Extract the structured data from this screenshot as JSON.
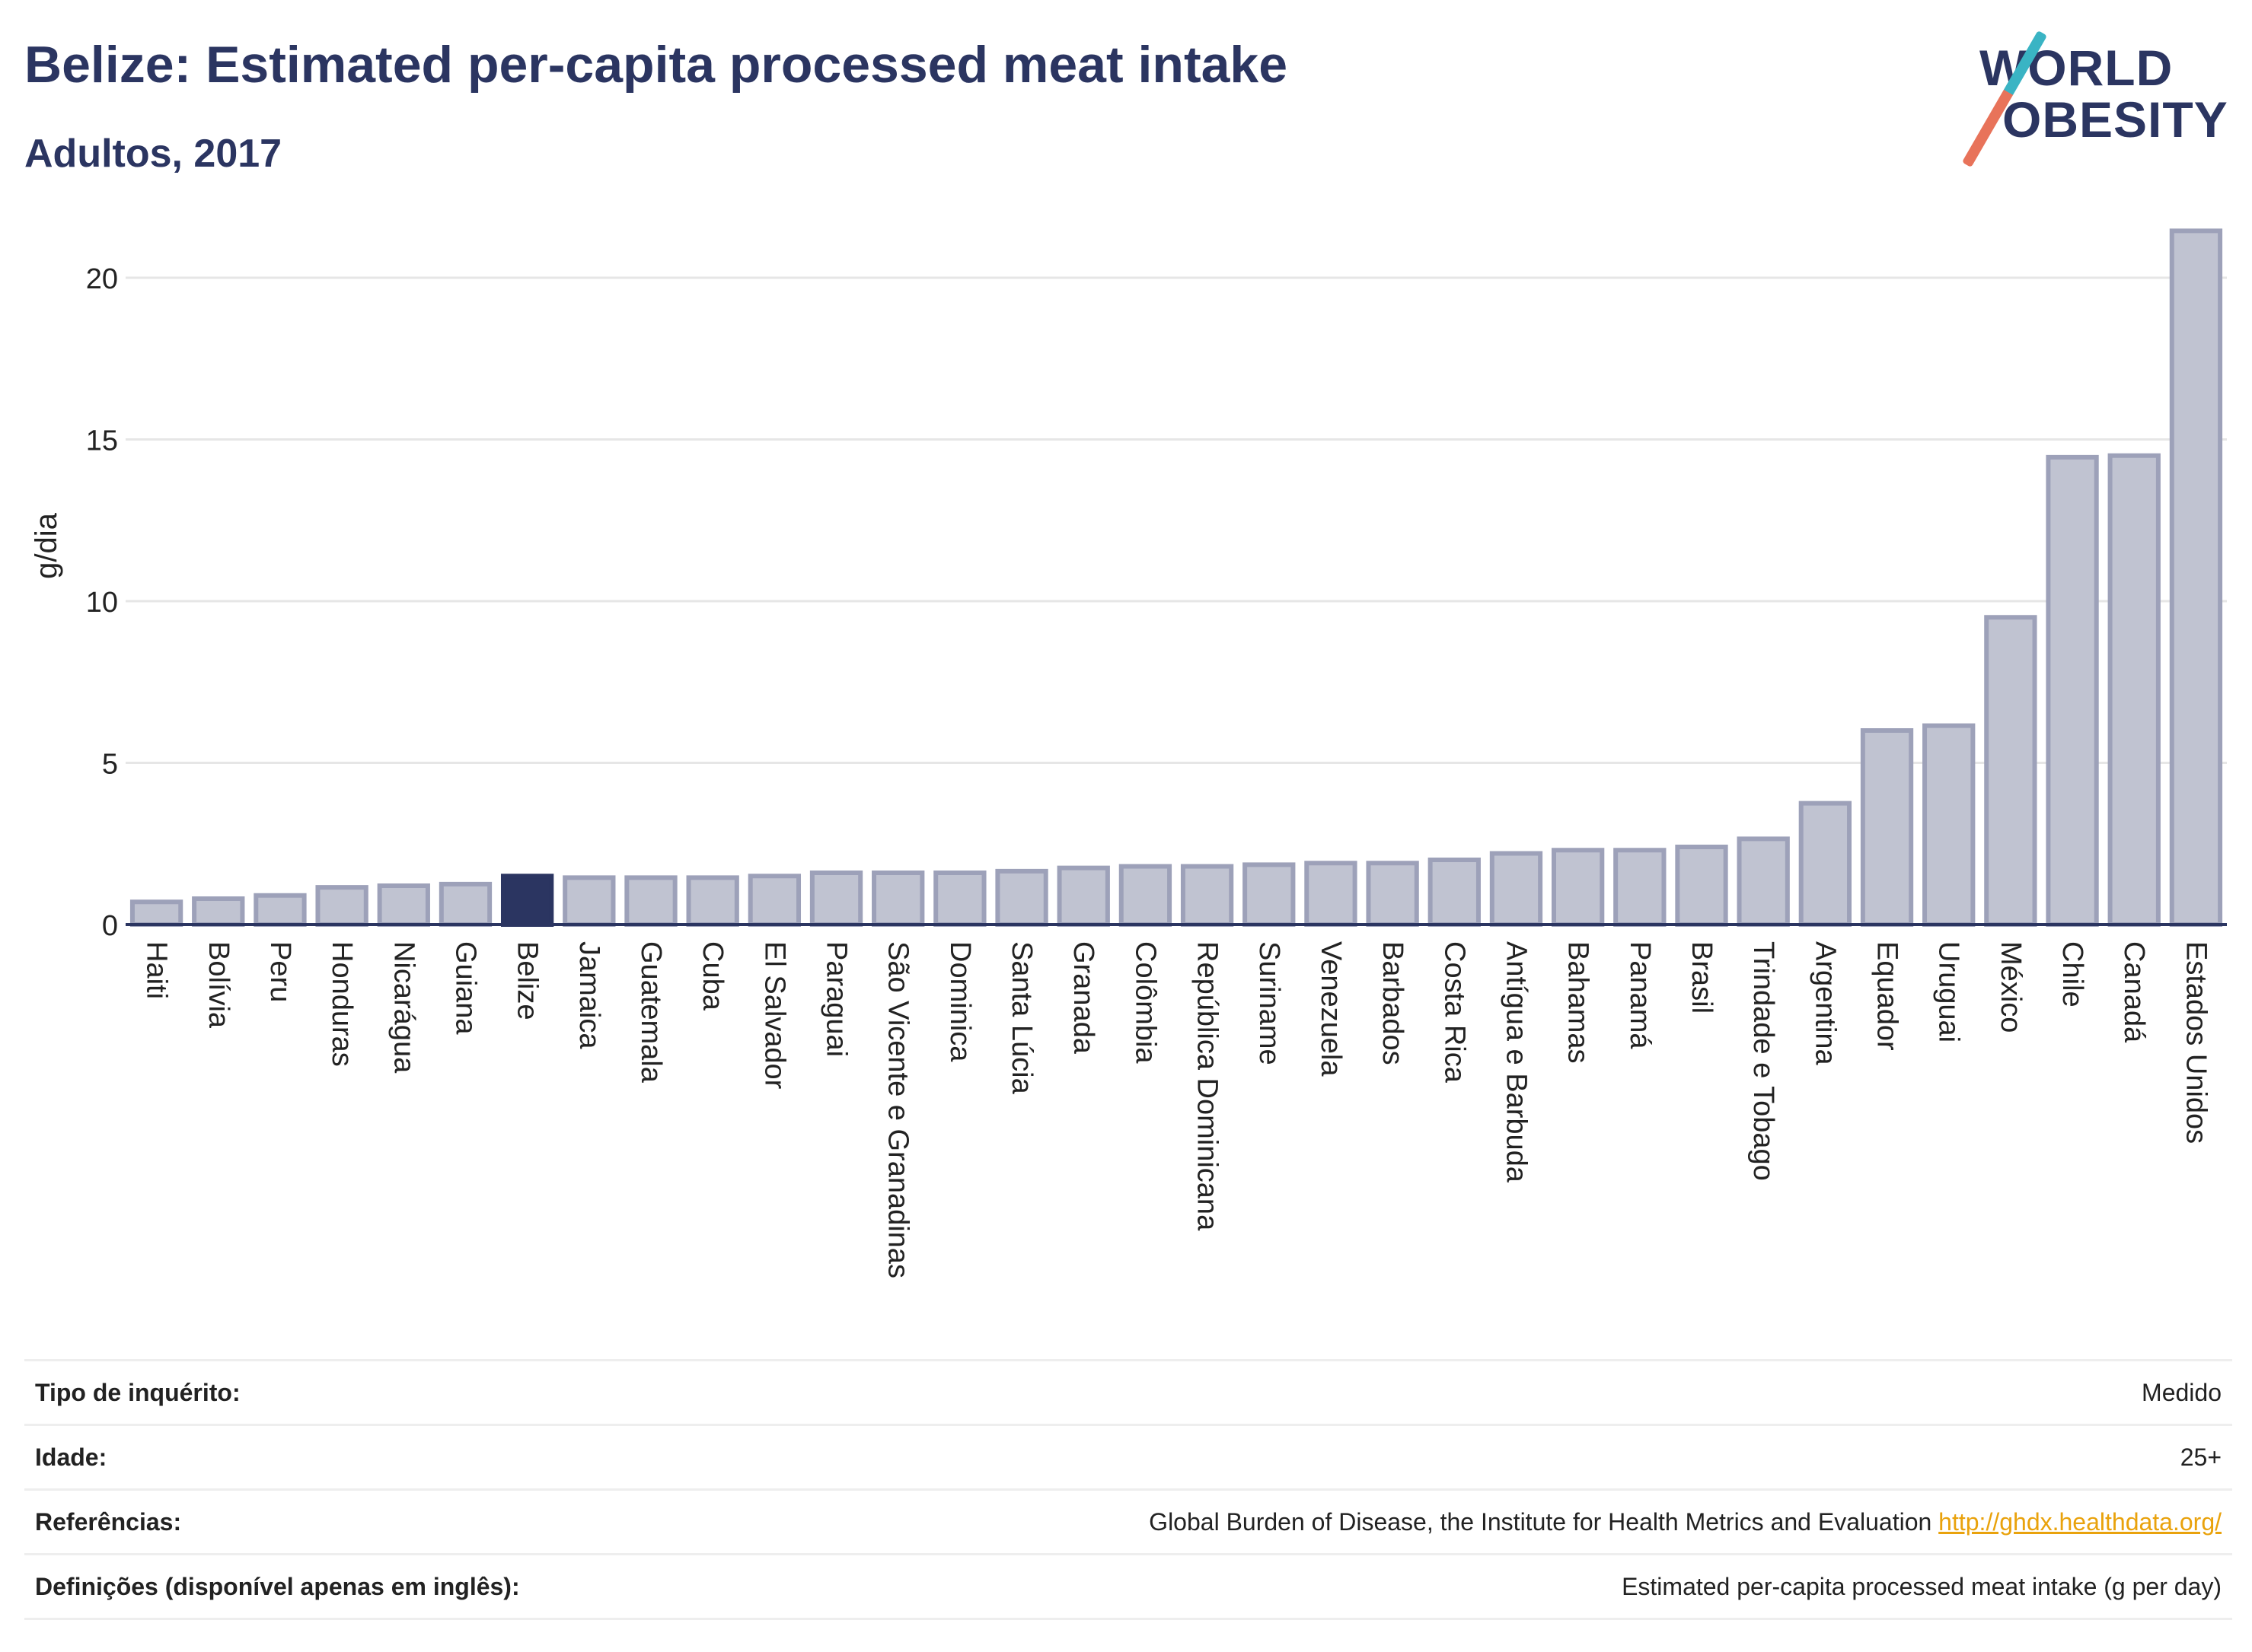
{
  "header": {
    "title": "Belize: Estimated per-capita processed meat intake",
    "subtitle": "Adultos, 2017"
  },
  "logo": {
    "line1": "WORLD",
    "line2": "OBESITY"
  },
  "chart_data": {
    "type": "bar",
    "ylabel": "g/dia",
    "ylim": [
      0,
      22
    ],
    "yticks": [
      0,
      5,
      10,
      15,
      20
    ],
    "grid": true,
    "highlight": "Belize",
    "colors": {
      "bar": "#c0c3d1",
      "bar_stroke": "#9da1b9",
      "highlight": "#2b3561",
      "grid": "#e6e6e6",
      "axis": "#2b3561"
    },
    "categories": [
      "Haiti",
      "Bolívia",
      "Peru",
      "Honduras",
      "Nicarágua",
      "Guiana",
      "Belize",
      "Jamaica",
      "Guatemala",
      "Cuba",
      "El Salvador",
      "Paraguai",
      "São Vicente e Granadinas",
      "Dominica",
      "Santa Lúcia",
      "Granada",
      "Colômbia",
      "República Dominicana",
      "Suriname",
      "Venezuela",
      "Barbados",
      "Costa Rica",
      "Antígua e Barbuda",
      "Bahamas",
      "Panamá",
      "Brasil",
      "Trindade e Tobago",
      "Argentina",
      "Equador",
      "Uruguai",
      "México",
      "Chile",
      "Canadá",
      "Estados Unidos"
    ],
    "values": [
      0.7,
      0.8,
      0.9,
      1.15,
      1.2,
      1.25,
      1.5,
      1.45,
      1.45,
      1.45,
      1.5,
      1.6,
      1.6,
      1.6,
      1.65,
      1.75,
      1.8,
      1.8,
      1.85,
      1.9,
      1.9,
      2.0,
      2.2,
      2.3,
      2.3,
      2.4,
      2.65,
      3.75,
      6.0,
      6.15,
      9.5,
      14.45,
      14.5,
      21.45
    ]
  },
  "info": [
    {
      "key": "Tipo de inquérito:",
      "value": "Medido"
    },
    {
      "key": "Idade:",
      "value": "25+"
    },
    {
      "key": "Referências:",
      "value": "Global Burden of Disease, the Institute for Health Metrics and Evaluation",
      "link": "http://ghdx.healthdata.org/"
    },
    {
      "key": "Definições (disponível apenas em inglês):",
      "value": "Estimated per-capita processed meat intake (g per day)"
    }
  ]
}
